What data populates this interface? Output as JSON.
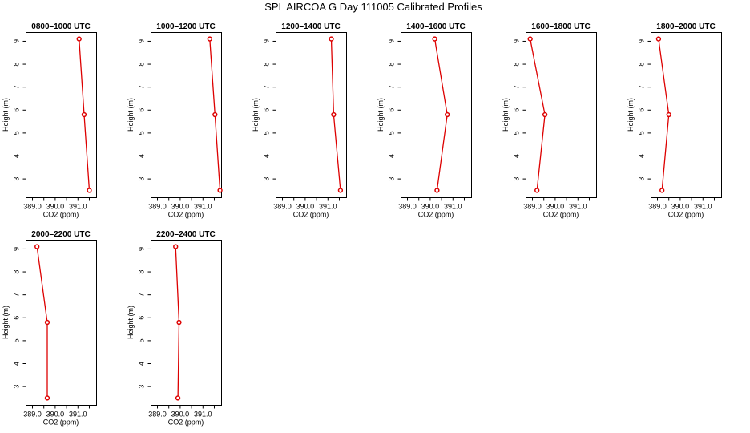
{
  "figure": {
    "title": "SPL AIRCOA G  Day 111005  Calibrated Profiles",
    "line_color": "#dd0000"
  },
  "chart_data": [
    {
      "type": "line",
      "title": "0800–1000 UTC",
      "xlabel": "CO2 (ppm)",
      "ylabel": "Height (m)",
      "xlim": [
        388.7,
        391.8
      ],
      "ylim": [
        2.2,
        9.4
      ],
      "xticks": [
        "389.0",
        "390.0",
        "391.0"
      ],
      "yticks": [
        "3",
        "4",
        "5",
        "6",
        "7",
        "8",
        "9"
      ],
      "grid": false,
      "series": [
        {
          "points": [
            [
              391.5,
              2.5
            ],
            [
              391.27,
              5.8
            ],
            [
              391.05,
              9.1
            ]
          ]
        }
      ]
    },
    {
      "type": "line",
      "title": "1000–1200 UTC",
      "xlabel": "CO2 (ppm)",
      "ylabel": "Height (m)",
      "xlim": [
        388.7,
        391.8
      ],
      "ylim": [
        2.2,
        9.4
      ],
      "xticks": [
        "389.0",
        "390.0",
        "391.0"
      ],
      "yticks": [
        "3",
        "4",
        "5",
        "6",
        "7",
        "8",
        "9"
      ],
      "grid": false,
      "series": [
        {
          "points": [
            [
              391.75,
              2.5
            ],
            [
              391.53,
              5.8
            ],
            [
              391.3,
              9.1
            ]
          ]
        }
      ]
    },
    {
      "type": "line",
      "title": "1200–1400 UTC",
      "xlabel": "CO2 (ppm)",
      "ylabel": "Height (m)",
      "xlim": [
        388.7,
        391.8
      ],
      "ylim": [
        2.2,
        9.4
      ],
      "xticks": [
        "389.0",
        "390.0",
        "391.0"
      ],
      "yticks": [
        "3",
        "4",
        "5",
        "6",
        "7",
        "8",
        "9"
      ],
      "grid": false,
      "series": [
        {
          "points": [
            [
              391.55,
              2.5
            ],
            [
              391.25,
              5.8
            ],
            [
              391.15,
              9.1
            ]
          ]
        }
      ]
    },
    {
      "type": "line",
      "title": "1400–1600 UTC",
      "xlabel": "CO2 (ppm)",
      "ylabel": "Height (m)",
      "xlim": [
        388.7,
        391.8
      ],
      "ylim": [
        2.2,
        9.4
      ],
      "xticks": [
        "389.0",
        "390.0",
        "391.0"
      ],
      "yticks": [
        "3",
        "4",
        "5",
        "6",
        "7",
        "8",
        "9"
      ],
      "grid": false,
      "series": [
        {
          "points": [
            [
              390.3,
              2.5
            ],
            [
              390.75,
              5.8
            ],
            [
              390.2,
              9.1
            ]
          ]
        }
      ]
    },
    {
      "type": "line",
      "title": "1600–1800 UTC",
      "xlabel": "CO2 (ppm)",
      "ylabel": "Height (m)",
      "xlim": [
        388.7,
        391.8
      ],
      "ylim": [
        2.2,
        9.4
      ],
      "xticks": [
        "389.0",
        "390.0",
        "391.0"
      ],
      "yticks": [
        "3",
        "4",
        "5",
        "6",
        "7",
        "8",
        "9"
      ],
      "grid": false,
      "series": [
        {
          "points": [
            [
              389.2,
              2.5
            ],
            [
              389.55,
              5.8
            ],
            [
              388.9,
              9.1
            ]
          ]
        }
      ]
    },
    {
      "type": "line",
      "title": "1800–2000 UTC",
      "xlabel": "CO2 (ppm)",
      "ylabel": "Height (m)",
      "xlim": [
        388.7,
        391.8
      ],
      "ylim": [
        2.2,
        9.4
      ],
      "xticks": [
        "389.0",
        "390.0",
        "391.0"
      ],
      "yticks": [
        "3",
        "4",
        "5",
        "6",
        "7",
        "8",
        "9"
      ],
      "grid": false,
      "series": [
        {
          "points": [
            [
              389.2,
              2.5
            ],
            [
              389.5,
              5.8
            ],
            [
              389.05,
              9.1
            ]
          ]
        }
      ]
    },
    {
      "type": "line",
      "title": "2000–2200 UTC",
      "xlabel": "CO2 (ppm)",
      "ylabel": "Height (m)",
      "xlim": [
        388.7,
        391.8
      ],
      "ylim": [
        2.2,
        9.4
      ],
      "xticks": [
        "389.0",
        "390.0",
        "391.0"
      ],
      "yticks": [
        "3",
        "4",
        "5",
        "6",
        "7",
        "8",
        "9"
      ],
      "grid": false,
      "series": [
        {
          "points": [
            [
              389.65,
              2.5
            ],
            [
              389.65,
              5.8
            ],
            [
              389.2,
              9.1
            ]
          ]
        }
      ]
    },
    {
      "type": "line",
      "title": "2200–2400 UTC",
      "xlabel": "CO2 (ppm)",
      "ylabel": "Height (m)",
      "xlim": [
        388.7,
        391.8
      ],
      "ylim": [
        2.2,
        9.4
      ],
      "xticks": [
        "389.0",
        "390.0",
        "391.0"
      ],
      "yticks": [
        "3",
        "4",
        "5",
        "6",
        "7",
        "8",
        "9"
      ],
      "grid": false,
      "series": [
        {
          "points": [
            [
              389.9,
              2.5
            ],
            [
              389.95,
              5.8
            ],
            [
              389.8,
              9.1
            ]
          ]
        }
      ]
    }
  ]
}
